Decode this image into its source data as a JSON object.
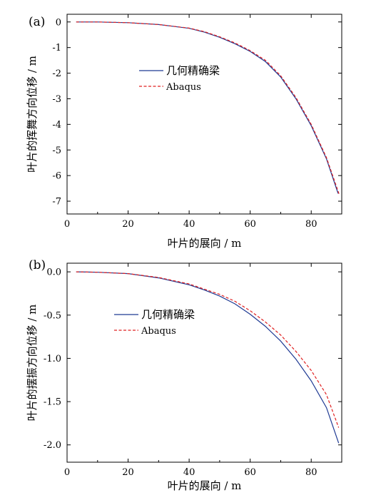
{
  "chart_data": [
    {
      "type": "line",
      "panel_label": "(a)",
      "xlabel": "叶片的展向 / m",
      "ylabel": "叶片的挥舞方向位移 / m",
      "xlim": [
        0,
        90
      ],
      "ylim": [
        -7.5,
        0.3
      ],
      "xticks": [
        0,
        20,
        40,
        60,
        80
      ],
      "yticks": [
        0,
        -1,
        -2,
        -3,
        -4,
        -5,
        -6,
        -7
      ],
      "legend_position": "upper-middle",
      "series": [
        {
          "name": "几何精确梁",
          "color": "#1f3a93",
          "dash": "solid",
          "x": [
            3,
            10,
            20,
            30,
            40,
            45,
            50,
            55,
            60,
            65,
            70,
            75,
            80,
            85,
            88.8
          ],
          "y": [
            0,
            0,
            -0.03,
            -0.1,
            -0.25,
            -0.4,
            -0.6,
            -0.85,
            -1.15,
            -1.55,
            -2.15,
            -3.0,
            -4.05,
            -5.35,
            -6.7
          ]
        },
        {
          "name": "Abaqus",
          "color": "#e02020",
          "dash": "dashed",
          "x": [
            3,
            10,
            20,
            30,
            40,
            45,
            50,
            55,
            60,
            65,
            70,
            75,
            80,
            85,
            89.2
          ],
          "y": [
            0,
            0,
            -0.03,
            -0.1,
            -0.24,
            -0.38,
            -0.58,
            -0.82,
            -1.12,
            -1.5,
            -2.1,
            -2.95,
            -4.0,
            -5.3,
            -6.75
          ]
        }
      ]
    },
    {
      "type": "line",
      "panel_label": "(b)",
      "xlabel": "叶片的展向 / m",
      "ylabel": "叶片的摆振方向位移 / m",
      "xlim": [
        0,
        90
      ],
      "ylim": [
        -2.2,
        0.1
      ],
      "xticks": [
        0,
        20,
        40,
        60,
        80
      ],
      "yticks": [
        "0.0",
        "-0.5",
        "-1.0",
        "-1.5",
        "-2.0"
      ],
      "legend_position": "upper-middle",
      "series": [
        {
          "name": "几何精确梁",
          "color": "#1f3a93",
          "dash": "solid",
          "x": [
            3,
            10,
            20,
            30,
            40,
            45,
            50,
            55,
            60,
            65,
            70,
            75,
            80,
            85,
            89
          ],
          "y": [
            0,
            -0.005,
            -0.02,
            -0.07,
            -0.15,
            -0.21,
            -0.28,
            -0.37,
            -0.49,
            -0.63,
            -0.8,
            -1.01,
            -1.26,
            -1.57,
            -1.98
          ]
        },
        {
          "name": "Abaqus",
          "color": "#e02020",
          "dash": "dashed",
          "x": [
            3,
            10,
            20,
            30,
            40,
            45,
            50,
            55,
            60,
            65,
            70,
            75,
            80,
            85,
            89
          ],
          "y": [
            0,
            -0.005,
            -0.02,
            -0.065,
            -0.14,
            -0.2,
            -0.26,
            -0.34,
            -0.45,
            -0.58,
            -0.73,
            -0.92,
            -1.14,
            -1.42,
            -1.8
          ]
        }
      ]
    }
  ]
}
